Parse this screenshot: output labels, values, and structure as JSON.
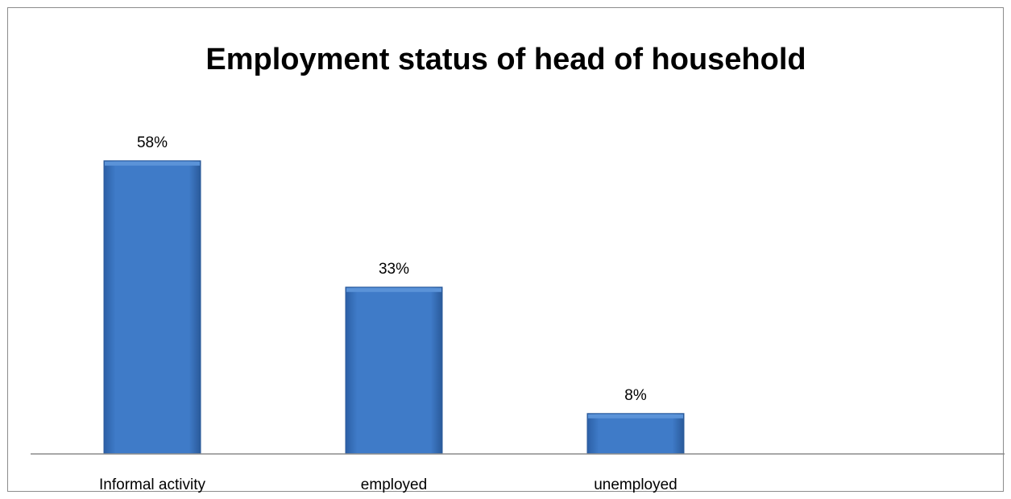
{
  "chart_data": {
    "type": "bar",
    "title": "Employment status of head of household",
    "categories": [
      "Informal activity",
      "employed",
      "unemployed"
    ],
    "values": [
      58,
      33,
      8
    ],
    "data_labels": [
      "58%",
      "33%",
      "8%"
    ],
    "unit": "%",
    "xlabel": "",
    "ylabel": "",
    "ylim": [
      0,
      60
    ],
    "grid": false,
    "legend": "none",
    "bar_color": "#3f7bc8",
    "bar_edge_color": "#2a5a9a",
    "axis_color": "#8c8c8c"
  }
}
